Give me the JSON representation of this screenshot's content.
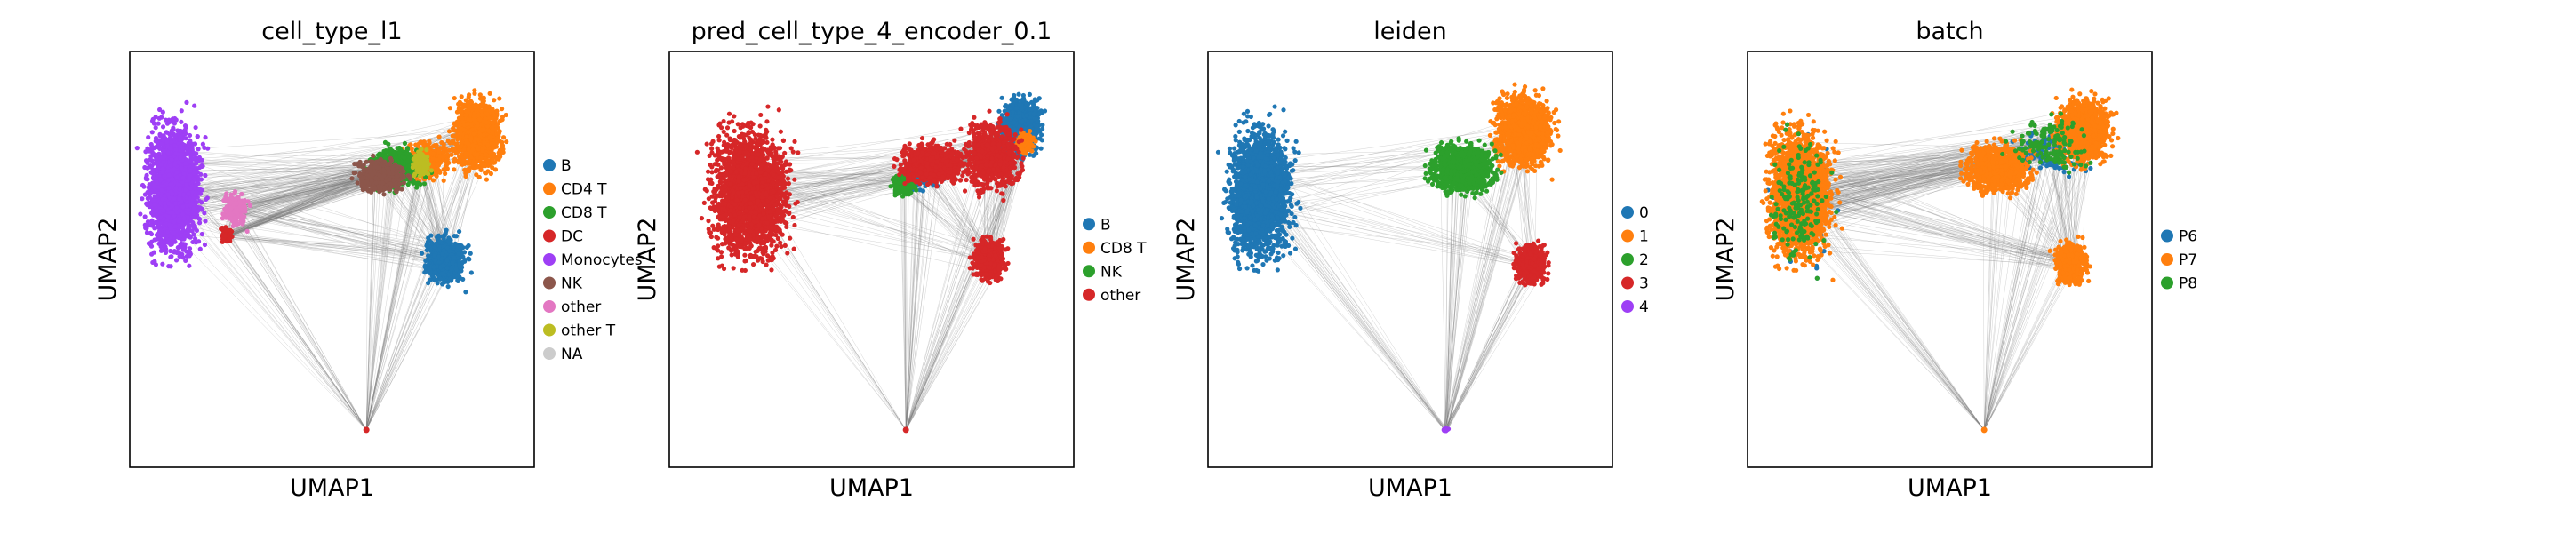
{
  "chart_data": [
    {
      "type": "scatter",
      "title": "cell_type_l1",
      "xlabel": "UMAP1",
      "ylabel": "UMAP2",
      "grid": false,
      "legend_position": "right",
      "edges": "paga-graph",
      "colors": {
        "edge": "#808080"
      },
      "series": [
        {
          "name": "B",
          "color": "#1f77b4",
          "clusters": [
            [
              0.78,
              0.5,
              0.05,
              0.06,
              700
            ]
          ]
        },
        {
          "name": "CD4 T",
          "color": "#ff7f0e",
          "clusters": [
            [
              0.86,
              0.8,
              0.06,
              0.09,
              1200
            ],
            [
              0.74,
              0.74,
              0.06,
              0.05,
              300
            ]
          ]
        },
        {
          "name": "CD8 T",
          "color": "#2ca02c",
          "clusters": [
            [
              0.66,
              0.72,
              0.07,
              0.05,
              700
            ]
          ]
        },
        {
          "name": "DC",
          "color": "#d62728",
          "clusters": [
            [
              0.24,
              0.56,
              0.015,
              0.02,
              60
            ]
          ]
        },
        {
          "name": "Monocytes",
          "color": "#9e3ff5",
          "clusters": [
            [
              0.11,
              0.67,
              0.07,
              0.16,
              2000
            ]
          ]
        },
        {
          "name": "NK",
          "color": "#8c564b",
          "clusters": [
            [
              0.62,
              0.7,
              0.06,
              0.04,
              600
            ]
          ]
        },
        {
          "name": "other",
          "color": "#e377c2",
          "clusters": [
            [
              0.26,
              0.62,
              0.03,
              0.04,
              200
            ]
          ]
        },
        {
          "name": "other T",
          "color": "#bcbd22",
          "clusters": [
            [
              0.72,
              0.73,
              0.02,
              0.03,
              120
            ]
          ]
        },
        {
          "name": "NA",
          "color": "#cccccc",
          "clusters": []
        }
      ]
    },
    {
      "type": "scatter",
      "title": "pred_cell_type_4_encoder_0.1",
      "xlabel": "UMAP1",
      "ylabel": "UMAP2",
      "grid": false,
      "legend_position": "right",
      "edges": "paga-graph",
      "colors": {
        "edge": "#808080"
      },
      "series": [
        {
          "name": "B",
          "color": "#1f77b4",
          "clusters": [
            [
              0.87,
              0.82,
              0.05,
              0.07,
              900
            ],
            [
              0.63,
              0.7,
              0.04,
              0.03,
              200
            ]
          ]
        },
        {
          "name": "CD8 T",
          "color": "#ff7f0e",
          "clusters": [
            [
              0.88,
              0.78,
              0.03,
              0.03,
              80
            ]
          ]
        },
        {
          "name": "NK",
          "color": "#2ca02c",
          "clusters": [
            [
              0.58,
              0.68,
              0.03,
              0.03,
              200
            ]
          ]
        },
        {
          "name": "other",
          "color": "#d62728",
          "clusters": [
            [
              0.2,
              0.66,
              0.1,
              0.16,
              2200
            ],
            [
              0.65,
              0.73,
              0.08,
              0.05,
              900
            ],
            [
              0.8,
              0.75,
              0.07,
              0.09,
              700
            ],
            [
              0.79,
              0.5,
              0.04,
              0.05,
              500
            ]
          ]
        }
      ]
    },
    {
      "type": "scatter",
      "title": "leiden",
      "xlabel": "UMAP1",
      "ylabel": "UMAP2",
      "grid": false,
      "legend_position": "right",
      "edges": "paga-graph",
      "colors": {
        "edge": "#808080"
      },
      "series": [
        {
          "name": "0",
          "color": "#1f77b4",
          "clusters": [
            [
              0.13,
              0.66,
              0.08,
              0.16,
              2200
            ]
          ]
        },
        {
          "name": "1",
          "color": "#ff7f0e",
          "clusters": [
            [
              0.78,
              0.81,
              0.07,
              0.09,
              1500
            ]
          ]
        },
        {
          "name": "2",
          "color": "#2ca02c",
          "clusters": [
            [
              0.63,
              0.72,
              0.08,
              0.06,
              1100
            ]
          ]
        },
        {
          "name": "3",
          "color": "#d62728",
          "clusters": [
            [
              0.8,
              0.49,
              0.04,
              0.05,
              500
            ]
          ]
        },
        {
          "name": "4",
          "color": "#9e3ff5",
          "clusters": [
            [
              0.59,
              0.09,
              0.005,
              0.005,
              6
            ]
          ]
        }
      ]
    },
    {
      "type": "scatter",
      "title": "batch",
      "xlabel": "UMAP1",
      "ylabel": "UMAP2",
      "grid": false,
      "legend_position": "right",
      "edges": "paga-graph",
      "colors": {
        "edge": "#808080"
      },
      "series": [
        {
          "name": "P6",
          "color": "#1f77b4",
          "clusters": [
            [
              0.13,
              0.64,
              0.08,
              0.16,
              250
            ],
            [
              0.75,
              0.76,
              0.1,
              0.06,
              120
            ]
          ]
        },
        {
          "name": "P7",
          "color": "#ff7f0e",
          "clusters": [
            [
              0.13,
              0.66,
              0.08,
              0.16,
              2200
            ],
            [
              0.62,
              0.72,
              0.08,
              0.06,
              1000
            ],
            [
              0.83,
              0.81,
              0.07,
              0.08,
              1200
            ],
            [
              0.8,
              0.49,
              0.04,
              0.05,
              500
            ]
          ]
        },
        {
          "name": "P8",
          "color": "#2ca02c",
          "clusters": [
            [
              0.13,
              0.64,
              0.08,
              0.16,
              200
            ],
            [
              0.75,
              0.78,
              0.1,
              0.07,
              150
            ]
          ]
        }
      ]
    }
  ]
}
